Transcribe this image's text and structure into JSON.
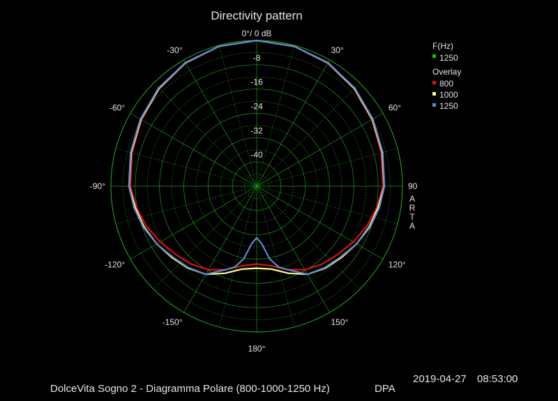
{
  "chart_data": {
    "type": "polar",
    "title": "Directivity pattern",
    "radial_unit": "dB",
    "radial_range": [
      -48,
      0
    ],
    "radial_ticks": [
      {
        "value": 0,
        "label": "0°/ 0 dB"
      },
      {
        "value": -8,
        "label": "-8"
      },
      {
        "value": -16,
        "label": "-16"
      },
      {
        "value": -24,
        "label": "-24"
      },
      {
        "value": -32,
        "label": "-32"
      },
      {
        "value": -40,
        "label": "-40"
      }
    ],
    "angle_ticks": [
      {
        "angle": 30,
        "label": "30°"
      },
      {
        "angle": 60,
        "label": "60°"
      },
      {
        "angle": 90,
        "label": "90"
      },
      {
        "angle": 120,
        "label": "120°"
      },
      {
        "angle": 150,
        "label": "150°"
      },
      {
        "angle": 180,
        "label": "180°"
      },
      {
        "angle": -150,
        "label": "-150°"
      },
      {
        "angle": -120,
        "label": "-120°"
      },
      {
        "angle": -90,
        "label": "-90°"
      },
      {
        "angle": -60,
        "label": "-60°"
      },
      {
        "angle": -30,
        "label": "-30°"
      }
    ],
    "side_label": "ARTA",
    "legend": {
      "freq_header": "F(Hz)",
      "freq_value": "1250",
      "freq_color": "#00d000",
      "overlay_header": "Overlay"
    },
    "series": [
      {
        "name": "800",
        "color": "#e01010",
        "angles": [
          0,
          15,
          30,
          45,
          60,
          75,
          90,
          100,
          110,
          120,
          130,
          140,
          150,
          160,
          170,
          180,
          -170,
          -160,
          -150,
          -140,
          -130,
          -120,
          -110,
          -100,
          -90,
          -75,
          -60,
          -45,
          -30,
          -15
        ],
        "db": [
          0,
          -0.3,
          -1.2,
          -2.6,
          -4.2,
          -5.5,
          -6.4,
          -7.8,
          -9.4,
          -11.3,
          -13.1,
          -14.5,
          -16.2,
          -18.8,
          -21.4,
          -22.4,
          -21.4,
          -18.8,
          -16.2,
          -14.5,
          -13.1,
          -11.3,
          -9.4,
          -7.8,
          -6.4,
          -5.5,
          -4.2,
          -2.6,
          -1.2,
          -0.3
        ]
      },
      {
        "name": "1000",
        "color": "#ffff90",
        "angles": [
          0,
          15,
          30,
          45,
          60,
          75,
          90,
          100,
          110,
          120,
          130,
          140,
          150,
          160,
          170,
          180,
          -170,
          -160,
          -150,
          -140,
          -130,
          -120,
          -110,
          -100,
          -90,
          -75,
          -60,
          -45,
          -30,
          -15
        ],
        "db": [
          0,
          -0.3,
          -1.1,
          -2.5,
          -4.0,
          -5.2,
          -6.0,
          -7.4,
          -8.6,
          -10.0,
          -11.5,
          -12.8,
          -14.5,
          -17.5,
          -20.3,
          -21.0,
          -20.3,
          -17.5,
          -14.5,
          -12.8,
          -11.5,
          -10.0,
          -8.6,
          -7.4,
          -6.0,
          -5.2,
          -4.0,
          -2.5,
          -1.1,
          -0.3
        ]
      },
      {
        "name": "1250",
        "color": "#5a8ad0",
        "angles": [
          0,
          15,
          30,
          45,
          60,
          75,
          90,
          100,
          110,
          120,
          130,
          140,
          150,
          160,
          165,
          170,
          175,
          180,
          -175,
          -170,
          -165,
          -160,
          -150,
          -140,
          -130,
          -120,
          -110,
          -100,
          -90,
          -75,
          -60,
          -45,
          -30,
          -15
        ],
        "db": [
          0,
          -0.3,
          -1.0,
          -2.3,
          -3.8,
          -5.0,
          -5.9,
          -7.0,
          -8.3,
          -10.0,
          -11.8,
          -13.0,
          -14.5,
          -18.8,
          -20.5,
          -23.8,
          -29.0,
          -31.0,
          -29.0,
          -23.8,
          -20.5,
          -18.8,
          -14.5,
          -13.0,
          -11.8,
          -10.0,
          -8.3,
          -7.0,
          -5.9,
          -5.0,
          -3.8,
          -2.3,
          -1.0,
          -0.3
        ]
      }
    ]
  },
  "footer": {
    "caption": "DolceVita Sogno 2 - Diagramma Polare (800-1000-1250 Hz)",
    "tag": "DPA",
    "date": "2019-04-27",
    "time": "08:53:00"
  }
}
